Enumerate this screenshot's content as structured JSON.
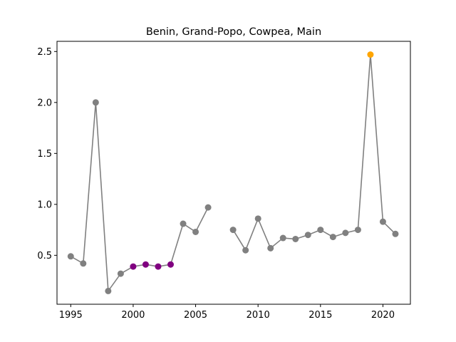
{
  "chart_data": {
    "type": "line",
    "title": "Benin, Grand-Popo, Cowpea, Main",
    "xlabel": "",
    "ylabel": "",
    "xlim": [
      1993.9,
      2022.2
    ],
    "ylim": [
      0.02,
      2.6
    ],
    "xticks": [
      1995,
      2000,
      2005,
      2010,
      2015,
      2020
    ],
    "yticks": [
      0.5,
      1.0,
      1.5,
      2.0,
      2.5
    ],
    "ytick_labels": [
      "0.5",
      "1.0",
      "1.5",
      "2.0",
      "2.5"
    ],
    "grid": false,
    "line_color": "#808080",
    "point_colors": {
      "normal": "#808080",
      "highlight": "#800080",
      "max": "#ffa500"
    },
    "segments": [
      {
        "x": [
          1995,
          1996,
          1997,
          1998,
          1999,
          2000,
          2001,
          2002,
          2003,
          2004,
          2005,
          2006
        ],
        "y": [
          0.49,
          0.42,
          2.0,
          0.15,
          0.32,
          0.39,
          0.41,
          0.39,
          0.41,
          0.81,
          0.73,
          0.97
        ]
      },
      {
        "x": [
          2008,
          2009,
          2010,
          2011,
          2012,
          2013,
          2014,
          2015,
          2016,
          2017,
          2018,
          2019,
          2020,
          2021
        ],
        "y": [
          0.75,
          0.55,
          0.86,
          0.57,
          0.67,
          0.66,
          0.7,
          0.75,
          0.68,
          0.72,
          0.75,
          2.47,
          0.83,
          0.71
        ]
      }
    ],
    "highlight_x": [
      2000,
      2001,
      2002,
      2003
    ],
    "max_x": [
      2019
    ]
  }
}
